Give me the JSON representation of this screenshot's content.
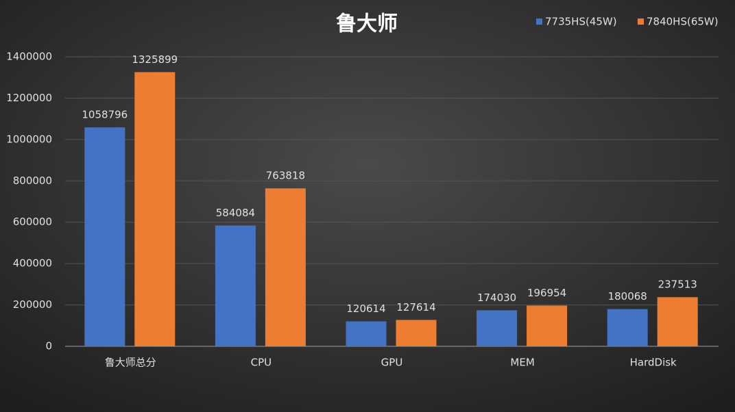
{
  "chart_data": {
    "type": "bar",
    "title": "鲁大师",
    "categories": [
      "鲁大师总分",
      "CPU",
      "GPU",
      "MEM",
      "HardDisk"
    ],
    "series": [
      {
        "name": "7735HS(45W)",
        "color": "#4472c4",
        "values": [
          1058796,
          584084,
          120614,
          174030,
          180068
        ]
      },
      {
        "name": "7840HS(65W)",
        "color": "#ed7d31",
        "values": [
          1325899,
          763818,
          127614,
          196954,
          237513
        ]
      }
    ],
    "ylim": [
      0,
      1400000
    ],
    "yticks": [
      0,
      200000,
      400000,
      600000,
      800000,
      1000000,
      1200000,
      1400000
    ],
    "grid": true,
    "legend": "top-right"
  }
}
